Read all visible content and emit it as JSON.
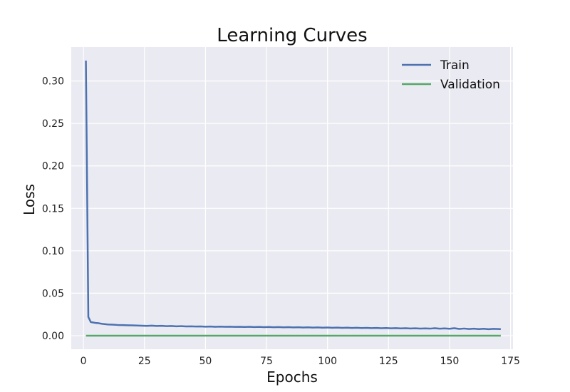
{
  "chart_data": {
    "type": "line",
    "title": "Learning Curves",
    "xlabel": "Epochs",
    "ylabel": "Loss",
    "xlim": [
      -5,
      176
    ],
    "ylim": [
      -0.016,
      0.34
    ],
    "xticks": [
      0,
      25,
      50,
      75,
      100,
      125,
      150,
      175
    ],
    "yticks": [
      0.0,
      0.05,
      0.1,
      0.15,
      0.2,
      0.25,
      0.3
    ],
    "ytick_labels": [
      "0.00",
      "0.05",
      "0.10",
      "0.15",
      "0.20",
      "0.25",
      "0.30"
    ],
    "grid": true,
    "legend_position": "top-right",
    "series": [
      {
        "name": "Train",
        "color": "#4c72b0",
        "x": [
          1,
          2,
          3,
          4,
          5,
          6,
          7,
          8,
          9,
          10,
          12,
          14,
          16,
          18,
          20,
          22,
          24,
          26,
          28,
          30,
          32,
          34,
          36,
          38,
          40,
          42,
          44,
          46,
          48,
          50,
          52,
          54,
          56,
          58,
          60,
          62,
          64,
          66,
          68,
          70,
          72,
          74,
          76,
          78,
          80,
          82,
          84,
          86,
          88,
          90,
          92,
          94,
          96,
          98,
          100,
          102,
          104,
          106,
          108,
          110,
          112,
          114,
          116,
          118,
          120,
          122,
          124,
          126,
          128,
          130,
          132,
          134,
          136,
          138,
          140,
          142,
          144,
          146,
          148,
          150,
          152,
          154,
          156,
          158,
          160,
          162,
          164,
          166,
          168,
          170,
          171
        ],
        "y": [
          0.324,
          0.022,
          0.016,
          0.0155,
          0.015,
          0.0148,
          0.0142,
          0.0138,
          0.0135,
          0.0132,
          0.013,
          0.0126,
          0.0124,
          0.0122,
          0.0121,
          0.0119,
          0.0117,
          0.0115,
          0.0118,
          0.0114,
          0.0116,
          0.0112,
          0.0114,
          0.011,
          0.0112,
          0.0109,
          0.011,
          0.0108,
          0.0109,
          0.0106,
          0.0108,
          0.0105,
          0.0107,
          0.0104,
          0.0106,
          0.0103,
          0.0105,
          0.0102,
          0.0104,
          0.0101,
          0.0103,
          0.01,
          0.0102,
          0.0099,
          0.0101,
          0.0098,
          0.01,
          0.0097,
          0.0099,
          0.0096,
          0.0098,
          0.0095,
          0.0097,
          0.0094,
          0.0096,
          0.0093,
          0.0095,
          0.0092,
          0.0094,
          0.0091,
          0.0093,
          0.009,
          0.0092,
          0.0089,
          0.0091,
          0.0088,
          0.009,
          0.0087,
          0.0089,
          0.0086,
          0.0088,
          0.0085,
          0.0087,
          0.0084,
          0.0086,
          0.0083,
          0.0088,
          0.0082,
          0.0086,
          0.0081,
          0.0088,
          0.0079,
          0.0084,
          0.0078,
          0.0082,
          0.0077,
          0.0081,
          0.0076,
          0.008,
          0.0078,
          0.0077
        ]
      },
      {
        "name": "Validation",
        "color": "#55a868",
        "x": [
          1,
          171
        ],
        "y": [
          0.0,
          0.0
        ]
      }
    ]
  }
}
